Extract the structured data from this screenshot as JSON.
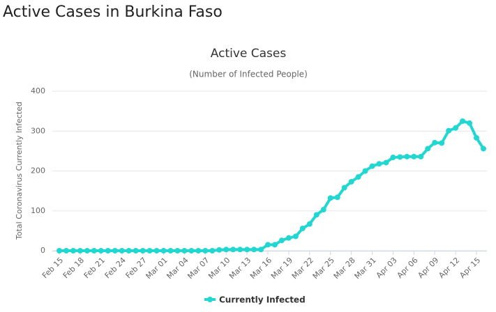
{
  "page_title": "Active Cases in Burkina Faso",
  "chart_data": {
    "type": "line",
    "title": "Active Cases",
    "subtitle": "(Number of Infected People)",
    "y_label": "Total Coronavirus Currently Infected",
    "categories": [
      "Feb 15",
      null,
      null,
      "Feb 18",
      null,
      null,
      "Feb 21",
      null,
      null,
      "Feb 24",
      null,
      null,
      "Feb 27",
      null,
      null,
      "Mar 01",
      null,
      null,
      "Mar 04",
      null,
      null,
      "Mar 07",
      null,
      null,
      "Mar 10",
      null,
      null,
      "Mar 13",
      null,
      null,
      "Mar 16",
      null,
      null,
      "Mar 19",
      null,
      null,
      "Mar 22",
      null,
      null,
      "Mar 25",
      null,
      null,
      "Mar 28",
      null,
      null,
      "Mar 31",
      null,
      null,
      "Apr 03",
      null,
      null,
      "Apr 06",
      null,
      null,
      "Apr 09",
      null,
      null,
      "Apr 12",
      null,
      null,
      "Apr 15",
      null
    ],
    "series": [
      {
        "name": "Currently Infected",
        "color": "#22d6d2",
        "values": [
          0,
          0,
          0,
          0,
          0,
          0,
          0,
          0,
          0,
          0,
          0,
          0,
          0,
          0,
          0,
          0,
          0,
          0,
          0,
          0,
          0,
          0,
          0,
          2,
          3,
          3,
          3,
          3,
          3,
          3,
          15,
          15,
          26,
          32,
          36,
          56,
          67,
          90,
          103,
          132,
          134,
          158,
          173,
          185,
          200,
          212,
          218,
          221,
          234,
          235,
          236,
          236,
          236,
          256,
          271,
          270,
          301,
          308,
          325,
          320,
          283,
          256
        ]
      }
    ],
    "ylim": [
      0,
      400
    ],
    "yticks": [
      0,
      100,
      200,
      300,
      400
    ],
    "grid": true,
    "legend": "bottom"
  }
}
